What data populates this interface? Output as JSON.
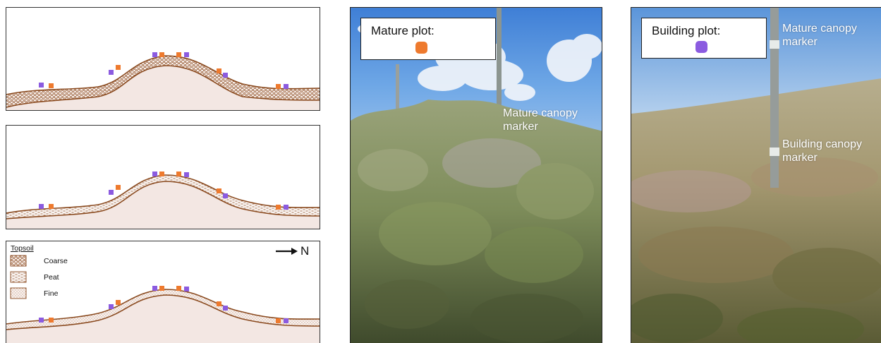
{
  "diagram": {
    "legend": {
      "title": "Topsoil",
      "items": [
        {
          "label": "Coarse",
          "pattern": "coarse-pattern"
        },
        {
          "label": "Peat",
          "pattern": "peat-pattern"
        },
        {
          "label": "Fine",
          "pattern": "fine-pattern"
        }
      ]
    },
    "north_label": "N",
    "colors": {
      "mature_marker": "#ee7a2e",
      "building_marker": "#8b5be0",
      "soil_line": "#8a4a1f",
      "ground_fill": "#f3e7e3"
    }
  },
  "photos": {
    "mature": {
      "box_label": "Mature plot:",
      "swatch_color": "#ee7a2e",
      "annotation": "Mature canopy marker"
    },
    "building": {
      "box_label": "Building plot:",
      "swatch_color": "#8b5be0",
      "annotation_top": "Mature canopy marker",
      "annotation_mid": "Building canopy marker"
    }
  }
}
